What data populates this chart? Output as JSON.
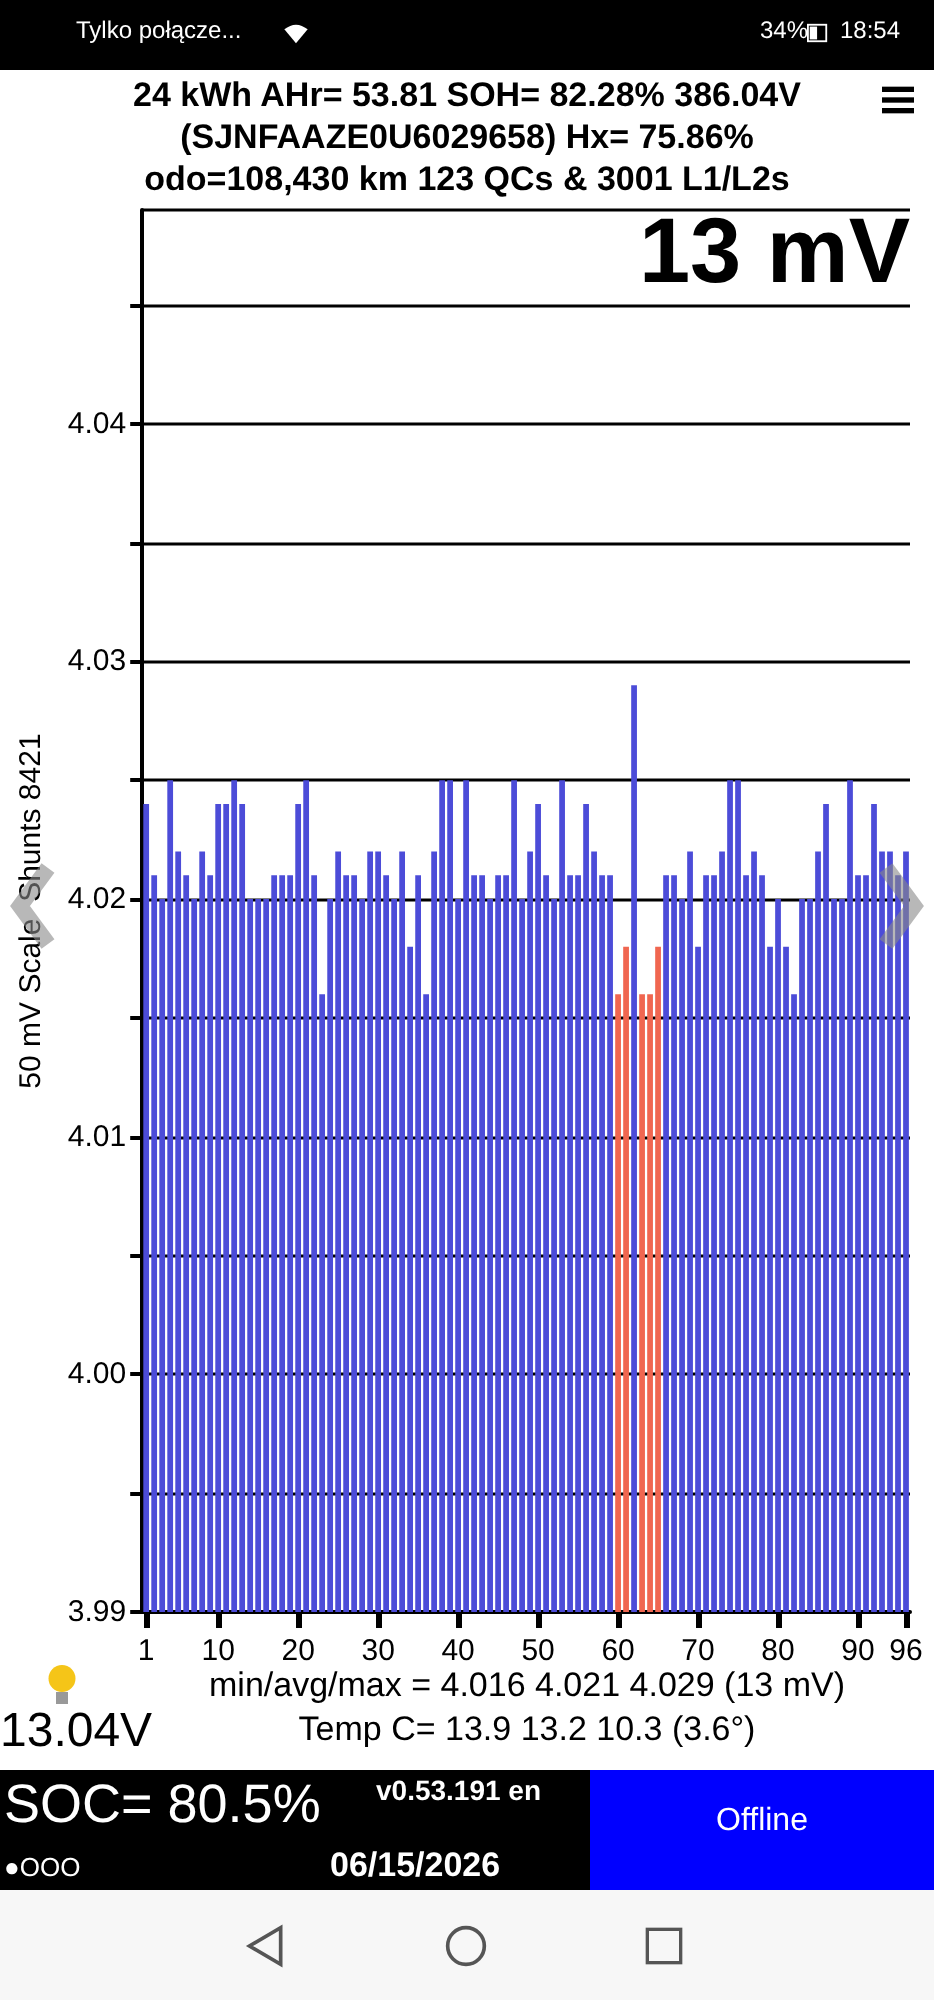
{
  "chart_data": {
    "type": "bar",
    "title": "24 kWh  AHr= 53.81 SOH= 82.28% 386.04V",
    "subtitle": "(SJNFAAZE0U6029658)   Hx= 75.86%\nodo=108,430 km 123 QCs & 3001 L1/L2s",
    "ylabel": "50 mV Scale  Shunts 8421",
    "categories": [
      "1",
      null,
      null,
      null,
      null,
      null,
      null,
      null,
      null,
      "10",
      null,
      null,
      null,
      null,
      null,
      null,
      null,
      null,
      null,
      "20",
      null,
      null,
      null,
      null,
      null,
      null,
      null,
      null,
      null,
      "30",
      null,
      null,
      null,
      null,
      null,
      null,
      null,
      null,
      null,
      "40",
      null,
      null,
      null,
      null,
      null,
      null,
      null,
      null,
      null,
      "50",
      null,
      null,
      null,
      null,
      null,
      null,
      null,
      null,
      null,
      "60",
      null,
      null,
      null,
      null,
      null,
      null,
      null,
      null,
      null,
      "70",
      null,
      null,
      null,
      null,
      null,
      null,
      null,
      null,
      null,
      "80",
      null,
      null,
      null,
      null,
      null,
      null,
      null,
      null,
      null,
      "90",
      null,
      null,
      null,
      null,
      null,
      "96"
    ],
    "values": [
      4.024,
      4.021,
      4.02,
      4.025,
      4.022,
      4.021,
      4.02,
      4.022,
      4.021,
      4.024,
      4.024,
      4.025,
      4.024,
      4.02,
      4.02,
      4.02,
      4.021,
      4.021,
      4.021,
      4.024,
      4.025,
      4.021,
      4.016,
      4.02,
      4.022,
      4.021,
      4.021,
      4.02,
      4.022,
      4.022,
      4.021,
      4.02,
      4.022,
      4.018,
      4.021,
      4.016,
      4.022,
      4.025,
      4.025,
      4.02,
      4.025,
      4.021,
      4.021,
      4.02,
      4.021,
      4.021,
      4.025,
      4.02,
      4.022,
      4.024,
      4.021,
      4.02,
      4.025,
      4.021,
      4.021,
      4.024,
      4.022,
      4.021,
      4.021,
      4.016,
      4.018,
      4.029,
      4.016,
      4.016,
      4.018,
      4.021,
      4.021,
      4.02,
      4.022,
      4.018,
      4.021,
      4.021,
      4.022,
      4.025,
      4.025,
      4.021,
      4.022,
      4.021,
      4.018,
      4.02,
      4.018,
      4.016,
      4.02,
      4.02,
      4.022,
      4.024,
      4.02,
      4.02,
      4.025,
      4.021,
      4.021,
      4.024,
      4.022,
      4.022,
      4.021,
      4.022
    ],
    "colors": [
      "#4c4cd8",
      "#4c4cd8",
      "#4c4cd8",
      "#4c4cd8",
      "#4c4cd8",
      "#4c4cd8",
      "#4c4cd8",
      "#4c4cd8",
      "#4c4cd8",
      "#4c4cd8",
      "#4c4cd8",
      "#4c4cd8",
      "#4c4cd8",
      "#4c4cd8",
      "#4c4cd8",
      "#4c4cd8",
      "#4c4cd8",
      "#4c4cd8",
      "#4c4cd8",
      "#4c4cd8",
      "#4c4cd8",
      "#4c4cd8",
      "#4c4cd8",
      "#4c4cd8",
      "#4c4cd8",
      "#4c4cd8",
      "#4c4cd8",
      "#4c4cd8",
      "#4c4cd8",
      "#4c4cd8",
      "#4c4cd8",
      "#4c4cd8",
      "#4c4cd8",
      "#4c4cd8",
      "#4c4cd8",
      "#4c4cd8",
      "#4c4cd8",
      "#4c4cd8",
      "#4c4cd8",
      "#4c4cd8",
      "#4c4cd8",
      "#4c4cd8",
      "#4c4cd8",
      "#4c4cd8",
      "#4c4cd8",
      "#4c4cd8",
      "#4c4cd8",
      "#4c4cd8",
      "#4c4cd8",
      "#4c4cd8",
      "#4c4cd8",
      "#4c4cd8",
      "#4c4cd8",
      "#4c4cd8",
      "#4c4cd8",
      "#4c4cd8",
      "#4c4cd8",
      "#4c4cd8",
      "#4c4cd8",
      "#f06650",
      "#f06650",
      "#4c4cd8",
      "#f06650",
      "#f06650",
      "#f06650",
      "#4c4cd8",
      "#4c4cd8",
      "#4c4cd8",
      "#4c4cd8",
      "#4c4cd8",
      "#4c4cd8",
      "#4c4cd8",
      "#4c4cd8",
      "#4c4cd8",
      "#4c4cd8",
      "#4c4cd8",
      "#4c4cd8",
      "#4c4cd8",
      "#4c4cd8",
      "#4c4cd8",
      "#4c4cd8",
      "#4c4cd8",
      "#4c4cd8",
      "#4c4cd8",
      "#4c4cd8",
      "#4c4cd8",
      "#4c4cd8",
      "#4c4cd8",
      "#4c4cd8",
      "#4c4cd8",
      "#4c4cd8",
      "#4c4cd8",
      "#4c4cd8",
      "#4c4cd8",
      "#4c4cd8",
      "#4c4cd8"
    ],
    "ylim": [
      3.99,
      4.049
    ],
    "yticks": [
      3.99,
      {
        "value": 3.995,
        "label": null
      },
      {
        "value": 4,
        "label": "4.00"
      },
      {
        "value": 4.005,
        "label": null
      },
      4.01,
      {
        "value": 4.015,
        "label": null
      },
      4.02,
      {
        "value": 4.025,
        "label": null
      },
      4.03,
      {
        "value": 4.035,
        "label": null
      },
      4.04,
      {
        "value": 4.045,
        "label": null
      }
    ],
    "grid": "y",
    "annotations": [
      "13 mV",
      "min/avg/max = 4.016 4.021 4.029  (13 mV)",
      "Temp C= 13.9  13.2  10.3  (3.6°)",
      "13.04V",
      "SOC= 80.5%",
      "●OOO",
      "v0.53.191 en",
      "06/15/2026",
      "Offline",
      "Tylko połącze...",
      "34%",
      "18:54"
    ]
  }
}
